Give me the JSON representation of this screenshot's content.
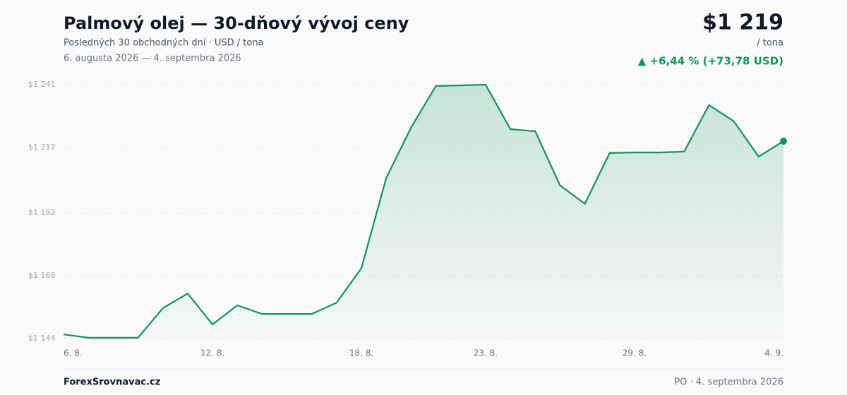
{
  "chart_data": {
    "type": "line",
    "title": "Palmový olej — 30-dňový vývoj ceny",
    "subtitle": "Posledných 30 obchodných dní · USD / tona",
    "date_range": "6. augusta 2026 — 4. septembra 2026",
    "price": "$1 219",
    "unit": "/ tona",
    "change": "▲ +6,44 % (+73,78 USD)",
    "source": "ForexSrovnavac.cz",
    "date_stamp": "PO · 4. septembra 2026",
    "categories": [
      "6. 8.",
      null,
      null,
      null,
      null,
      null,
      "12. 8.",
      null,
      null,
      null,
      null,
      null,
      "18. 8.",
      null,
      null,
      null,
      null,
      "23. 8.",
      null,
      null,
      null,
      null,
      null,
      "29. 8.",
      null,
      null,
      null,
      null,
      null,
      "4. 9."
    ],
    "series": [
      {
        "name": "Palmový olej",
        "color": "#13925f",
        "values": [
          1145.6,
          1144.3,
          1144.3,
          1144.3,
          1155.6,
          1161.2,
          1149.4,
          1156.7,
          1153.4,
          1153.4,
          1153.4,
          1157.7,
          1170.9,
          1205.4,
          1224.6,
          1240.5,
          1240.7,
          1241.0,
          1224.0,
          1223.2,
          1202.5,
          1195.5,
          1214.9,
          1215.1,
          1215.1,
          1215.4,
          1233.2,
          1227.0,
          1213.5,
          1219.4
        ]
      }
    ],
    "ylim": [
      1144,
      1241
    ],
    "yticks": [
      {
        "value": 1144,
        "label": "$1 144"
      },
      {
        "value": 1168,
        "label": "$1 168"
      },
      {
        "value": 1192,
        "label": "$1 192"
      },
      {
        "value": 1217,
        "label": "$1 217"
      },
      {
        "value": 1241,
        "label": "$1 241"
      }
    ],
    "grid": true
  }
}
